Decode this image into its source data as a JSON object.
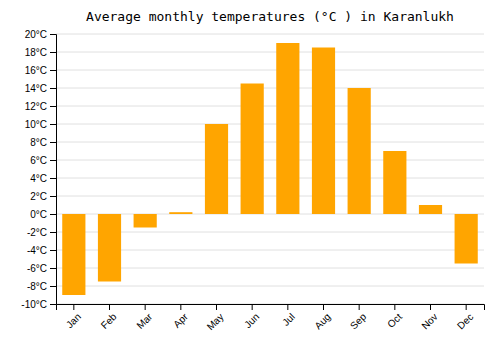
{
  "chart_data": {
    "type": "bar",
    "title": "Average monthly temperatures (°C ) in Karanlukh",
    "categories": [
      "Jan",
      "Feb",
      "Mar",
      "Apr",
      "May",
      "Jun",
      "Jul",
      "Aug",
      "Sep",
      "Oct",
      "Nov",
      "Dec"
    ],
    "values": [
      -9.0,
      -7.5,
      -1.5,
      0.2,
      10.0,
      14.5,
      19.0,
      18.5,
      14.0,
      7.0,
      1.0,
      -5.5
    ],
    "color": "#FFA500",
    "ylim": [
      -10,
      20
    ],
    "yticks": [
      {
        "value": -10,
        "label": "-10°C"
      },
      {
        "value": -8,
        "label": "-8°C"
      },
      {
        "value": -6,
        "label": "-6°C"
      },
      {
        "value": -4,
        "label": "-4°C"
      },
      {
        "value": -2,
        "label": "-2°C"
      },
      {
        "value": 0,
        "label": "0°C"
      },
      {
        "value": 2,
        "label": "2°C"
      },
      {
        "value": 4,
        "label": "4°C"
      },
      {
        "value": 6,
        "label": "6°C"
      },
      {
        "value": 8,
        "label": "8°C"
      },
      {
        "value": 10,
        "label": "10°C"
      },
      {
        "value": 12,
        "label": "12°C"
      },
      {
        "value": 14,
        "label": "14°C"
      },
      {
        "value": 16,
        "label": "16°C"
      },
      {
        "value": 18,
        "label": "18°C"
      },
      {
        "value": 20,
        "label": "20°C"
      }
    ],
    "grid": true
  }
}
